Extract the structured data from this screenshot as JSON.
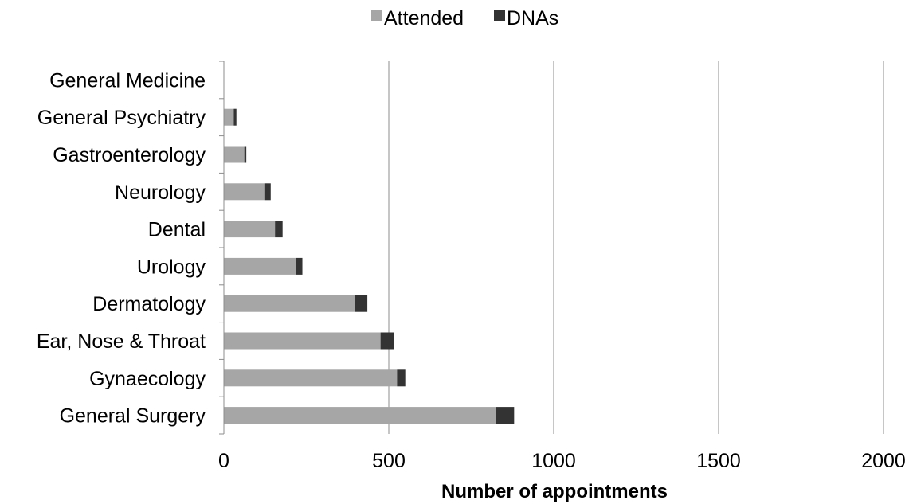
{
  "chart_data": {
    "type": "bar",
    "orientation": "horizontal",
    "stacked": true,
    "categories": [
      "General Medicine",
      "General Psychiatry",
      "Gastroenterology",
      "Neurology",
      "Dental",
      "Urology",
      "Dermatology",
      "Ear, Nose & Throat",
      "Gynaecology",
      "General Surgery"
    ],
    "series": [
      {
        "name": "Attended",
        "color": "#a6a6a6",
        "values": [
          0,
          30,
          62,
          125,
          155,
          218,
          398,
          475,
          525,
          825
        ]
      },
      {
        "name": "DNAs",
        "color": "#333333",
        "values": [
          0,
          8,
          6,
          17,
          23,
          20,
          37,
          40,
          25,
          55
        ]
      }
    ],
    "xlabel": "Number of appointments",
    "xlim": [
      0,
      2000
    ],
    "xticks": [
      "0",
      "500",
      "1000",
      "1500",
      "2000"
    ],
    "grid": "vertical",
    "legend": "top-center"
  }
}
